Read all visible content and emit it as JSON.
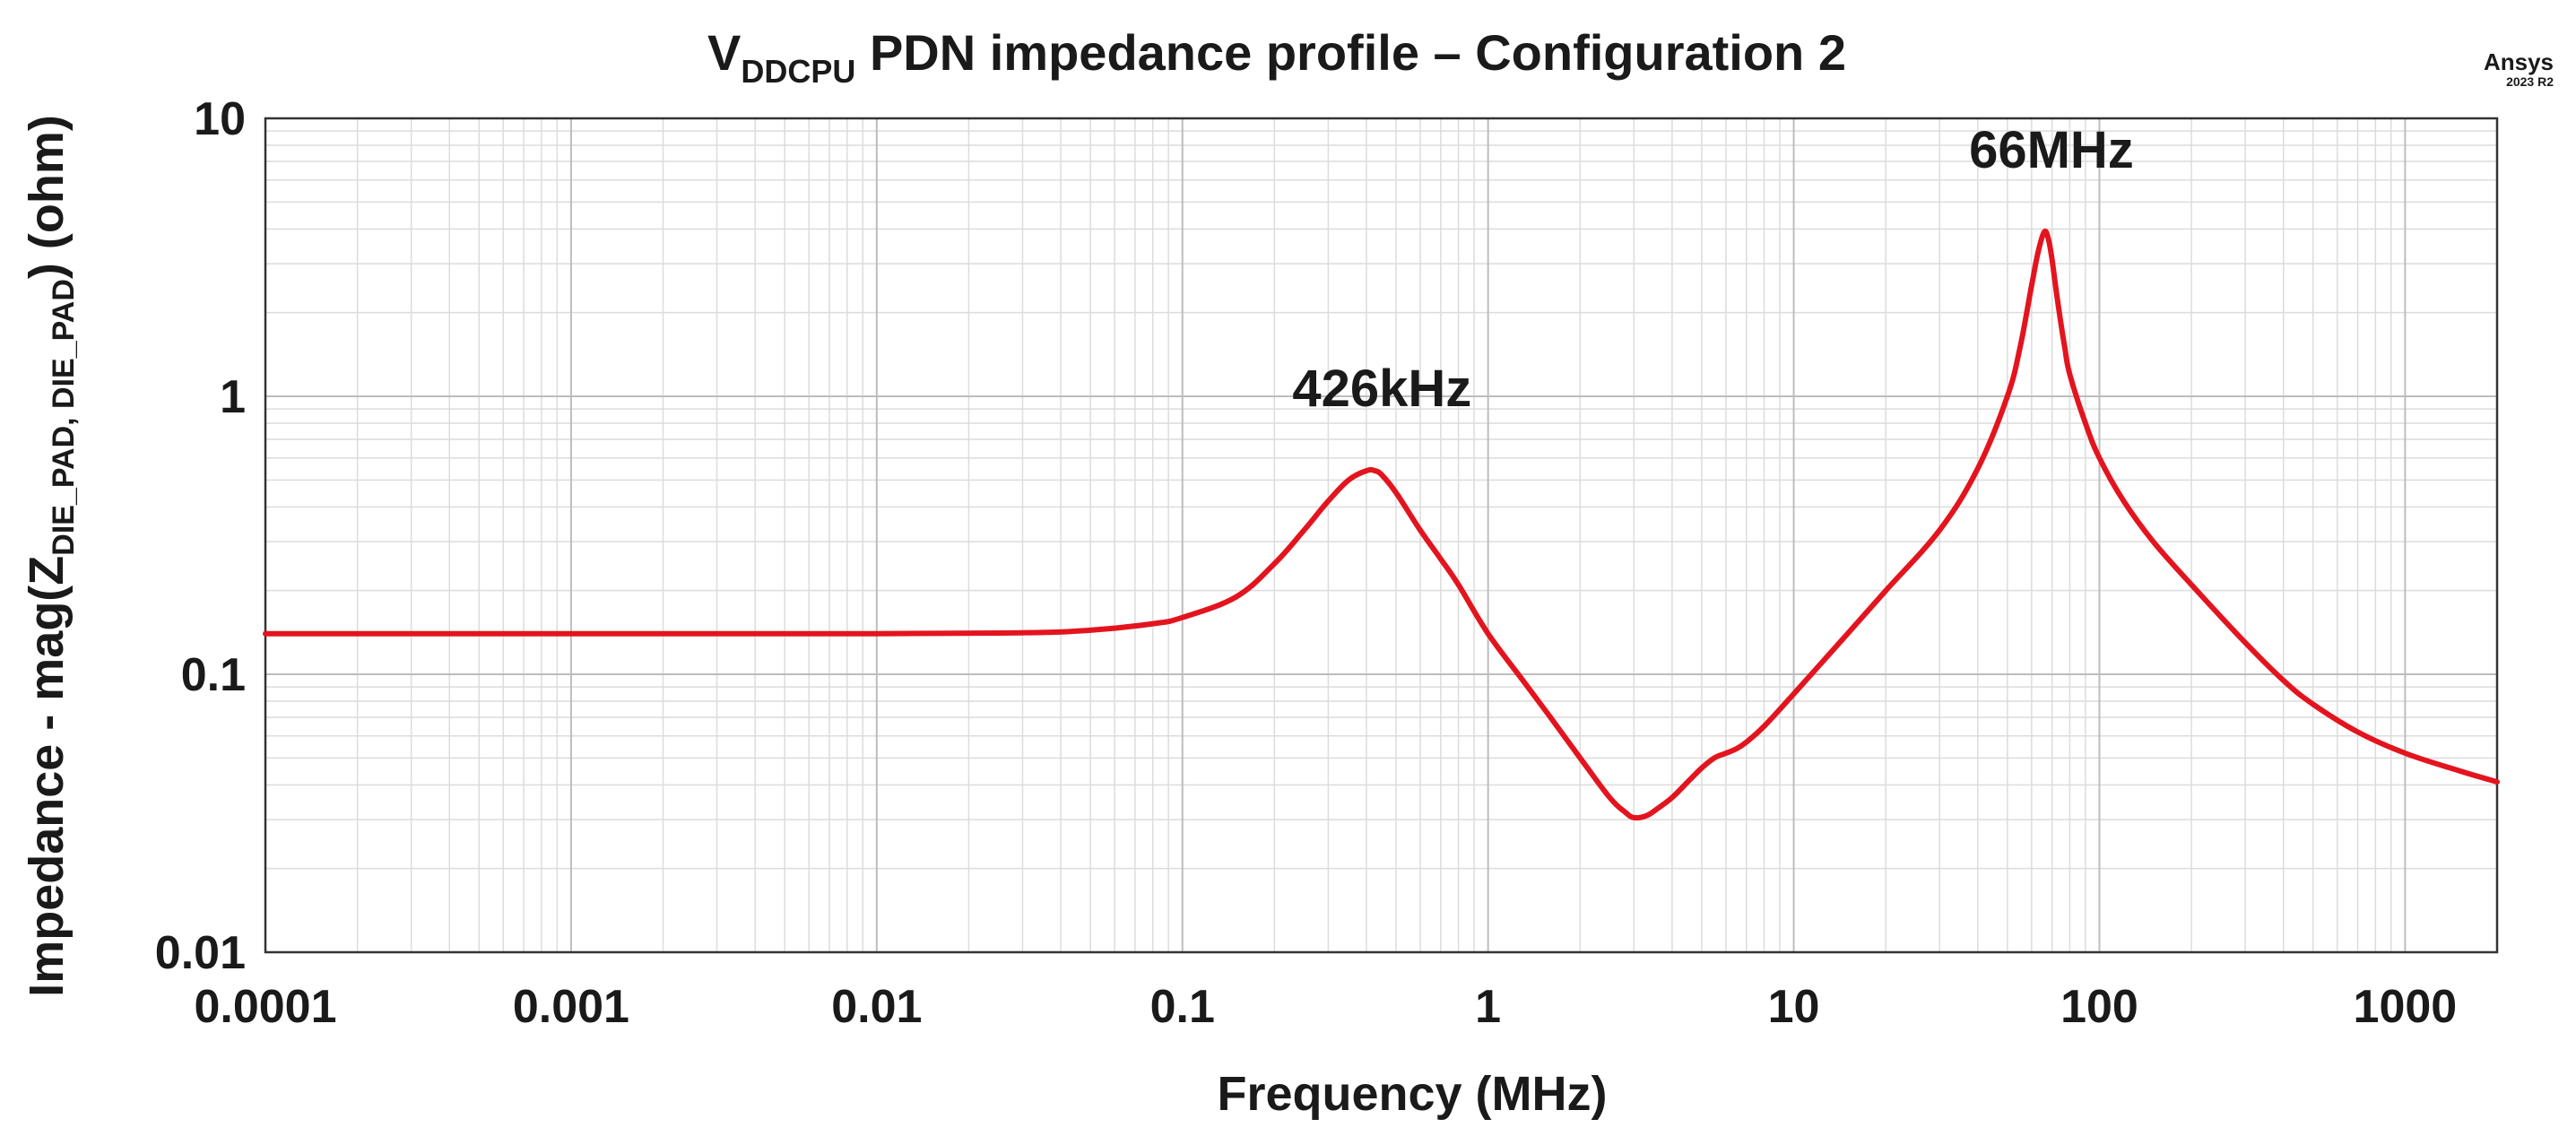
{
  "chart_data": {
    "type": "line",
    "title": {
      "prefix": "V",
      "subscript": "DDCPU",
      "suffix": " PDN impedance profile – Configuration 2"
    },
    "xlabel": "Frequency (MHz)",
    "ylabel": {
      "prefix": "Impedance - mag(Z",
      "subscript": "DIE_PAD, DIE_PAD",
      "suffix": ") (ohm)"
    },
    "xscale": "log",
    "yscale": "log",
    "xlim": [
      0.0001,
      2000
    ],
    "ylim": [
      0.01,
      10
    ],
    "x_ticks": [
      0.0001,
      0.001,
      0.01,
      0.1,
      1,
      10,
      100,
      1000
    ],
    "x_tick_labels": [
      "0.0001",
      "0.001",
      "0.01",
      "0.1",
      "1",
      "10",
      "100",
      "1000"
    ],
    "y_ticks": [
      0.01,
      0.1,
      1,
      10
    ],
    "y_tick_labels": [
      "0.01",
      "0.1",
      "1",
      "10"
    ],
    "grid": true,
    "legend": "none",
    "series": [
      {
        "color": "#e3141e",
        "x": [
          0.0001,
          0.001,
          0.01,
          0.03,
          0.05,
          0.08,
          0.1,
          0.15,
          0.2,
          0.25,
          0.3,
          0.35,
          0.4,
          0.426,
          0.45,
          0.5,
          0.6,
          0.7,
          0.8,
          1,
          1.3,
          1.6,
          2,
          2.5,
          2.8,
          3,
          3.3,
          3.6,
          4,
          4.5,
          5,
          5.5,
          6,
          6.5,
          7,
          8,
          10,
          15,
          20,
          30,
          40,
          50,
          55,
          60,
          63,
          66,
          68,
          70,
          73,
          77,
          80,
          90,
          100,
          120,
          150,
          200,
          300,
          400,
          500,
          700,
          1000,
          1500,
          2000
        ],
        "y": [
          0.14,
          0.14,
          0.14,
          0.141,
          0.144,
          0.152,
          0.16,
          0.19,
          0.25,
          0.33,
          0.42,
          0.5,
          0.54,
          0.54,
          0.52,
          0.45,
          0.33,
          0.26,
          0.21,
          0.14,
          0.095,
          0.07,
          0.05,
          0.036,
          0.032,
          0.0305,
          0.031,
          0.033,
          0.036,
          0.041,
          0.046,
          0.05,
          0.052,
          0.054,
          0.057,
          0.065,
          0.085,
          0.14,
          0.2,
          0.33,
          0.55,
          1.0,
          1.5,
          2.5,
          3.3,
          3.9,
          3.7,
          3.1,
          2.2,
          1.5,
          1.2,
          0.8,
          0.6,
          0.42,
          0.3,
          0.21,
          0.13,
          0.095,
          0.078,
          0.062,
          0.052,
          0.045,
          0.041
        ]
      }
    ],
    "annotations": [
      {
        "text": "426kHz",
        "x": 0.426,
        "y": 0.54
      },
      {
        "text": "66MHz",
        "x": 66,
        "y": 3.9
      }
    ]
  },
  "branding": {
    "name": "Ansys",
    "version": "2023 R2"
  }
}
